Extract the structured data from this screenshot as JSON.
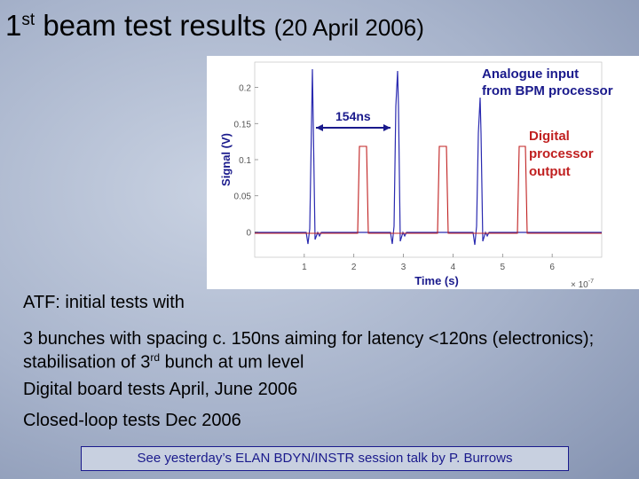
{
  "title": {
    "number": "1",
    "suffix": "st",
    "text": "beam test results",
    "date": "(20 April 2006)"
  },
  "figure": {
    "ylabel": "Signal (V)",
    "xlabel": "Time (s)",
    "x_multiplier": {
      "base": "× 10",
      "exponent": "-7"
    },
    "xlim": [
      0,
      7
    ],
    "ylim": [
      -0.035,
      0.235
    ],
    "xticks": [
      1,
      2,
      3,
      4,
      5,
      6
    ],
    "yticks": [
      0,
      0.05,
      0.1,
      0.15,
      0.2
    ],
    "annotations": {
      "interval": "154ns",
      "analogue": [
        "Analogue input",
        "from BPM processor"
      ],
      "digital": [
        "Digital",
        "processor",
        "output"
      ]
    }
  },
  "bullets": [
    {
      "text": "ATF: initial tests with"
    },
    {
      "text": "3 bunches with spacing c. 150ns aiming for latency <120ns (electronics); stabilisation of 3",
      "sup": "rd",
      "tail": "bunch at um level"
    },
    {
      "text": "Digital board tests April, June 2006"
    },
    {
      "text": "Closed-loop tests Dec 2006"
    }
  ],
  "footer": "See yesterday’s ELAN BDYN/INSTR session talk by P. Burrows"
}
